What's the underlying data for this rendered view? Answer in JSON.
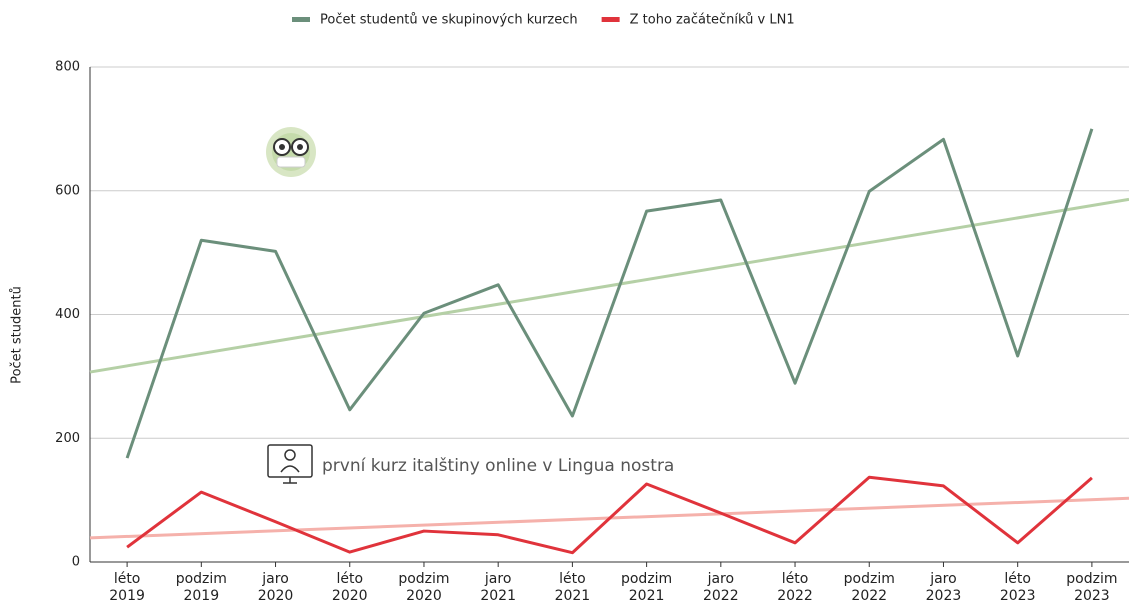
{
  "chart_data": {
    "type": "line",
    "y_label": "Počet studentů",
    "categories": [
      "léto\n2019",
      "podzim\n2019",
      "jaro\n2020",
      "léto\n2020",
      "podzim\n2020",
      "jaro\n2021",
      "léto\n2021",
      "podzim\n2021",
      "jaro\n2022",
      "léto\n2022",
      "podzim\n2022",
      "jaro\n2023",
      "léto\n2023",
      "podzim\n2023"
    ],
    "series": [
      {
        "name": "Počet studentů ve skupinových kurzech",
        "color": "#6b8f7b",
        "trend_color": "#b5d0a6",
        "values": [
          168,
          520,
          502,
          246,
          402,
          448,
          236,
          567,
          585,
          289,
          599,
          683,
          333,
          700
        ],
        "trendline": [
          307,
          586
        ]
      },
      {
        "name": "Z toho začátečníků v LN1",
        "color": "#e0333b",
        "trend_color": "#f5b1ab",
        "values": [
          24,
          113,
          65,
          16,
          50,
          44,
          15,
          126,
          79,
          31,
          137,
          123,
          31,
          136
        ],
        "trendline": [
          39,
          103
        ]
      }
    ],
    "annotation": "první kurz italštiny online v Lingua nostra",
    "ylim": [
      0,
      800
    ],
    "yticks": [
      0,
      200,
      400,
      600,
      800
    ],
    "grid": true,
    "legend": "top"
  }
}
